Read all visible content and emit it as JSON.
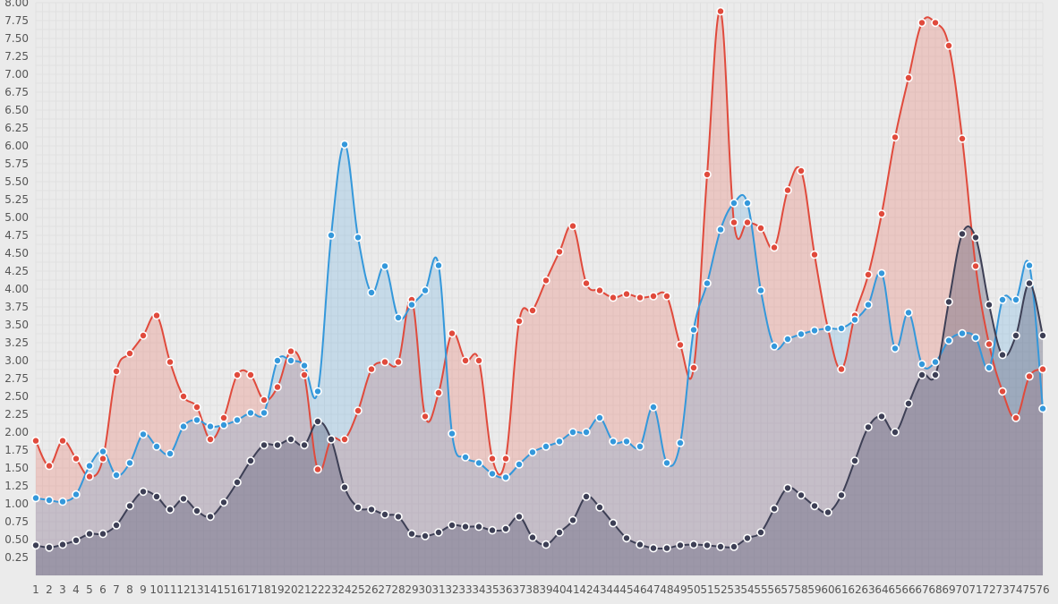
{
  "chart_data": {
    "type": "area",
    "title": "",
    "xlabel": "",
    "ylabel": "",
    "ylim": [
      0,
      8
    ],
    "y_ticks": [
      "0.25",
      "0.50",
      "0.75",
      "1.00",
      "1.25",
      "1.50",
      "1.75",
      "2.00",
      "2.25",
      "2.50",
      "2.75",
      "3.00",
      "3.25",
      "3.50",
      "3.75",
      "4.00",
      "4.25",
      "4.50",
      "4.75",
      "5.00",
      "5.25",
      "5.50",
      "5.75",
      "6.00",
      "6.25",
      "6.50",
      "6.75",
      "7.00",
      "7.25",
      "7.50",
      "7.75",
      "8.00"
    ],
    "y_tick_values": [
      0.25,
      0.5,
      0.75,
      1,
      1.25,
      1.5,
      1.75,
      2,
      2.25,
      2.5,
      2.75,
      3,
      3.25,
      3.5,
      3.75,
      4,
      4.25,
      4.5,
      4.75,
      5,
      5.25,
      5.5,
      5.75,
      6,
      6.25,
      6.5,
      6.75,
      7,
      7.25,
      7.5,
      7.75,
      8
    ],
    "x_ticks": [
      "1",
      "2",
      "3",
      "4",
      "5",
      "6",
      "7",
      "8",
      "9",
      "10",
      "11",
      "12",
      "13",
      "14",
      "15",
      "16",
      "17",
      "18",
      "19",
      "20",
      "21",
      "22",
      "23",
      "24",
      "25",
      "26",
      "27",
      "28",
      "29",
      "30",
      "31",
      "32",
      "33",
      "34",
      "35",
      "36",
      "37",
      "38",
      "39",
      "40",
      "41",
      "42",
      "43",
      "44",
      "45",
      "46",
      "47",
      "48",
      "49",
      "50",
      "51",
      "52",
      "53",
      "54",
      "55",
      "56",
      "57",
      "58",
      "59",
      "60",
      "61",
      "62",
      "63",
      "64",
      "65",
      "66",
      "67",
      "68",
      "69",
      "70",
      "71",
      "72",
      "73",
      "74",
      "75",
      "76"
    ],
    "grid": true,
    "series": [
      {
        "color": "#e04a3c",
        "fill": "rgba(231,76,60,0.22)",
        "values": [
          1.88,
          1.53,
          1.88,
          1.63,
          1.38,
          1.63,
          2.85,
          3.1,
          3.35,
          3.63,
          2.98,
          2.5,
          2.35,
          1.9,
          2.2,
          2.8,
          2.8,
          2.45,
          2.63,
          3.13,
          2.8,
          1.48,
          1.9,
          1.9,
          2.3,
          2.88,
          2.98,
          2.98,
          3.85,
          2.22,
          2.55,
          3.38,
          3.0,
          3.0,
          1.63,
          1.63,
          3.55,
          3.7,
          4.12,
          4.52,
          4.88,
          4.08,
          3.98,
          3.88,
          3.93,
          3.88,
          3.9,
          3.9,
          3.22,
          2.9,
          5.6,
          7.88,
          4.93,
          4.93,
          4.85,
          4.58,
          5.38,
          5.65,
          4.48,
          3.45,
          2.88,
          3.63,
          4.2,
          5.05,
          6.12,
          6.95,
          7.72,
          7.72,
          7.4,
          6.1,
          4.32,
          3.23,
          2.57,
          2.2,
          2.78,
          2.88
        ]
      },
      {
        "color": "#3498db",
        "fill": "rgba(52,152,219,0.20)",
        "values": [
          1.08,
          1.05,
          1.03,
          1.13,
          1.53,
          1.73,
          1.4,
          1.57,
          1.97,
          1.8,
          1.7,
          2.08,
          2.17,
          2.08,
          2.1,
          2.17,
          2.27,
          2.27,
          3.0,
          3.0,
          2.93,
          2.57,
          4.75,
          6.02,
          4.72,
          3.95,
          4.32,
          3.6,
          3.78,
          3.98,
          4.33,
          1.98,
          1.65,
          1.57,
          1.42,
          1.37,
          1.55,
          1.72,
          1.8,
          1.87,
          2.0,
          2.0,
          2.2,
          1.87,
          1.87,
          1.8,
          2.35,
          1.57,
          1.85,
          3.43,
          4.08,
          4.83,
          5.2,
          5.2,
          3.98,
          3.2,
          3.3,
          3.37,
          3.42,
          3.45,
          3.45,
          3.57,
          3.78,
          4.22,
          3.17,
          3.67,
          2.95,
          2.98,
          3.28,
          3.38,
          3.32,
          2.9,
          3.85,
          3.85,
          4.33,
          2.33
        ]
      },
      {
        "color": "#3d3f55",
        "fill": "rgba(80,80,110,0.35)",
        "values": [
          0.42,
          0.39,
          0.43,
          0.49,
          0.58,
          0.58,
          0.7,
          0.97,
          1.17,
          1.1,
          0.92,
          1.07,
          0.9,
          0.82,
          1.02,
          1.3,
          1.6,
          1.82,
          1.82,
          1.9,
          1.82,
          2.15,
          1.9,
          1.23,
          0.95,
          0.92,
          0.85,
          0.82,
          0.58,
          0.55,
          0.6,
          0.7,
          0.68,
          0.68,
          0.63,
          0.65,
          0.82,
          0.53,
          0.43,
          0.6,
          0.77,
          1.1,
          0.95,
          0.73,
          0.52,
          0.43,
          0.38,
          0.38,
          0.42,
          0.43,
          0.42,
          0.4,
          0.4,
          0.52,
          0.6,
          0.93,
          1.22,
          1.12,
          0.97,
          0.88,
          1.12,
          1.6,
          2.07,
          2.22,
          2.0,
          2.4,
          2.8,
          2.8,
          3.82,
          4.77,
          4.72,
          3.78,
          3.08,
          3.35,
          4.08,
          3.35
        ]
      }
    ]
  }
}
